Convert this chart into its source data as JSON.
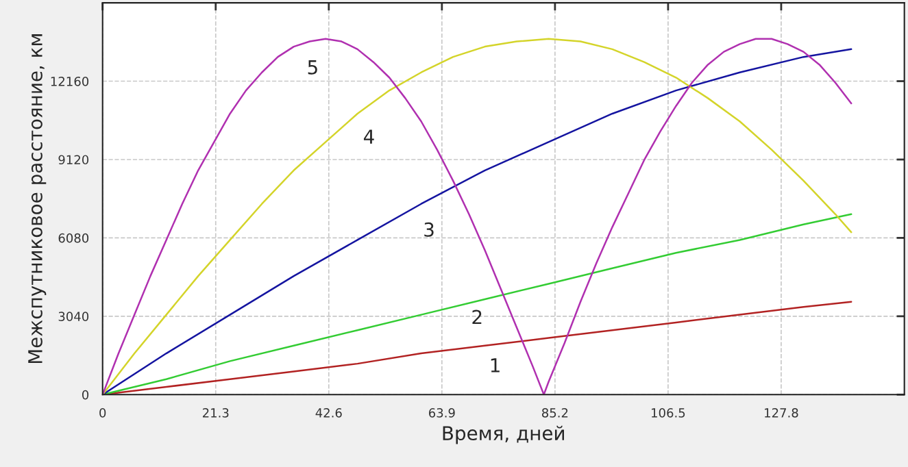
{
  "chart_data": {
    "type": "line",
    "xlabel": "Время, дней",
    "ylabel": "Межспутниковое расстояние, км",
    "xlim": [
      0,
      151
    ],
    "ylim": [
      0,
      15200
    ],
    "xticks": [
      0,
      21.3,
      42.6,
      63.9,
      85.2,
      106.5,
      127.8
    ],
    "yticks": [
      0,
      3040,
      6080,
      9120,
      12160
    ],
    "grid": true,
    "line_style": "solid",
    "marker": "none",
    "series": [
      {
        "name": "1",
        "color": "#b22222",
        "x": [
          0,
          12,
          24,
          36,
          48,
          60,
          72,
          84,
          96,
          108,
          120,
          132,
          141
        ],
        "values": [
          0,
          300,
          600,
          900,
          1200,
          1600,
          1900,
          2200,
          2500,
          2800,
          3100,
          3400,
          3600
        ]
      },
      {
        "name": "2",
        "color": "#33cc33",
        "x": [
          0,
          12,
          24,
          36,
          48,
          60,
          72,
          84,
          96,
          108,
          120,
          132,
          141
        ],
        "values": [
          0,
          600,
          1300,
          1900,
          2500,
          3100,
          3700,
          4300,
          4900,
          5500,
          6000,
          6600,
          7000
        ]
      },
      {
        "name": "3",
        "color": "#1414a0",
        "x": [
          0,
          12,
          24,
          36,
          48,
          60,
          72,
          84,
          96,
          108,
          120,
          132,
          141
        ],
        "values": [
          0,
          1600,
          3100,
          4600,
          6000,
          7400,
          8700,
          9800,
          10900,
          11800,
          12500,
          13100,
          13400
        ]
      },
      {
        "name": "4",
        "color": "#d4d42a",
        "x": [
          0,
          6,
          12,
          18,
          24,
          30,
          36,
          42,
          48,
          54,
          60,
          66,
          72,
          78,
          84,
          90,
          96,
          102,
          108,
          114,
          120,
          126,
          132,
          138,
          141
        ],
        "values": [
          0,
          1600,
          3100,
          4600,
          6000,
          7400,
          8700,
          9800,
          10900,
          11800,
          12500,
          13100,
          13500,
          13700,
          13800,
          13700,
          13400,
          12900,
          12300,
          11500,
          10600,
          9500,
          8300,
          7000,
          6300
        ]
      },
      {
        "name": "5",
        "color": "#b030b0",
        "x": [
          0,
          3,
          6,
          9,
          12,
          15,
          18,
          21,
          24,
          27,
          30,
          33,
          36,
          39,
          42,
          45,
          48,
          51,
          54,
          57,
          60,
          63,
          66,
          69,
          72,
          75,
          78,
          81,
          83.1,
          84,
          87,
          90,
          93,
          96,
          99,
          102,
          105,
          108,
          111,
          114,
          117,
          120,
          123,
          126,
          129,
          132,
          135,
          138,
          141
        ],
        "values": [
          0,
          1600,
          3100,
          4600,
          6000,
          7400,
          8700,
          9800,
          10900,
          11800,
          12500,
          13100,
          13500,
          13700,
          13800,
          13700,
          13400,
          12900,
          12300,
          11500,
          10600,
          9500,
          8300,
          7000,
          5600,
          4100,
          2600,
          1100,
          0,
          500,
          2000,
          3600,
          5100,
          6500,
          7800,
          9100,
          10200,
          11200,
          12100,
          12800,
          13300,
          13600,
          13800,
          13800,
          13600,
          13300,
          12800,
          12100,
          11300
        ]
      }
    ]
  }
}
